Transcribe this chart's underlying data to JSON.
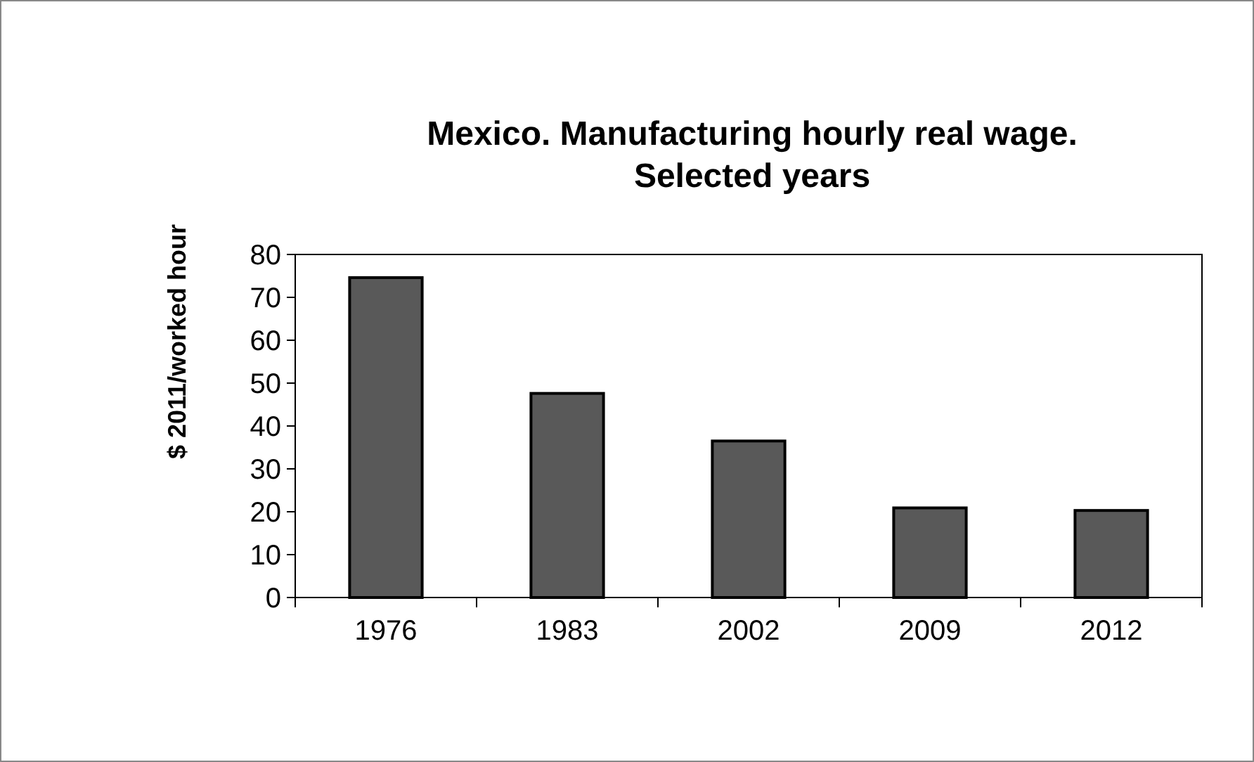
{
  "chart_data": {
    "type": "bar",
    "title": "Mexico. Manufacturing hourly real wage.\nSelected years",
    "ylabel": "$ 2011/worked hour",
    "categories": [
      "1976",
      "1983",
      "2002",
      "2009",
      "2012"
    ],
    "values": [
      74.6,
      47.6,
      36.5,
      20.9,
      20.3
    ],
    "color": "#595959",
    "ylim": [
      0,
      80
    ],
    "yticks": [
      0,
      10,
      20,
      30,
      40,
      50,
      60,
      70,
      80
    ],
    "grid": false
  }
}
